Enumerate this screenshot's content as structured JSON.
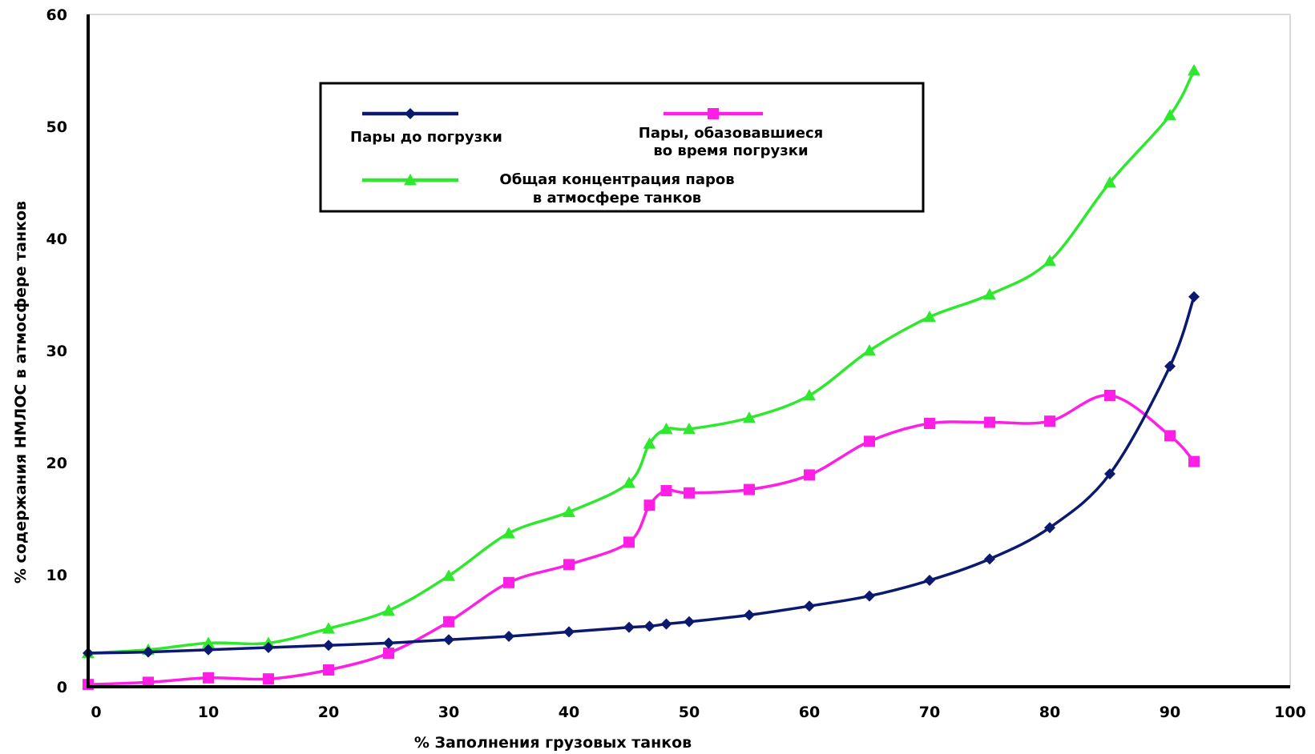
{
  "chart_data": {
    "type": "line",
    "xlabel": "% Заполнения грузовых танков",
    "ylabel": "% содержания НМЛОС  в атмосфере танков",
    "xlim": [
      0,
      100
    ],
    "ylim": [
      0,
      60
    ],
    "x_ticks": [
      "0",
      "10",
      "20",
      "30",
      "40",
      "50",
      "60",
      "70",
      "80",
      "90",
      "100"
    ],
    "y_ticks": [
      "0",
      "10",
      "20",
      "30",
      "40",
      "50",
      "60"
    ],
    "grid": false,
    "legend_position": "top-center",
    "series": [
      {
        "name": "Пары  до погрузки",
        "legend_lines": [
          "Пары  до погрузки"
        ],
        "color": "#0b1a6e",
        "marker": "diamond",
        "points": [
          [
            0,
            3.0
          ],
          [
            5,
            3.1
          ],
          [
            10,
            3.3
          ],
          [
            15,
            3.5
          ],
          [
            20,
            3.7
          ],
          [
            25,
            3.9
          ],
          [
            30,
            4.2
          ],
          [
            35,
            4.5
          ],
          [
            40,
            4.9
          ],
          [
            45,
            5.3
          ],
          [
            46.7,
            5.4
          ],
          [
            48.1,
            5.6
          ],
          [
            50,
            5.8
          ],
          [
            55,
            6.4
          ],
          [
            60,
            7.2
          ],
          [
            65,
            8.1
          ],
          [
            70,
            9.5
          ],
          [
            75,
            11.4
          ],
          [
            80,
            14.2
          ],
          [
            85,
            19.0
          ],
          [
            90,
            28.6
          ],
          [
            92,
            34.8
          ]
        ]
      },
      {
        "name": "Пары, обазовавшиеся во время погрузки",
        "legend_lines": [
          "Пары, обазовавшиеся",
          "во время погрузки"
        ],
        "color": "#ff1ee6",
        "marker": "square",
        "points": [
          [
            0,
            0.2
          ],
          [
            5,
            0.4
          ],
          [
            10,
            0.8
          ],
          [
            15,
            0.7
          ],
          [
            20,
            1.5
          ],
          [
            25,
            3.0
          ],
          [
            30,
            5.8
          ],
          [
            35,
            9.3
          ],
          [
            40,
            10.9
          ],
          [
            45,
            12.9
          ],
          [
            46.7,
            16.2
          ],
          [
            48.1,
            17.5
          ],
          [
            50,
            17.3
          ],
          [
            55,
            17.6
          ],
          [
            60,
            18.9
          ],
          [
            65,
            21.9
          ],
          [
            70,
            23.5
          ],
          [
            75,
            23.6
          ],
          [
            80,
            23.7
          ],
          [
            85,
            26.0
          ],
          [
            90,
            22.4
          ],
          [
            92,
            20.1
          ]
        ]
      },
      {
        "name": "Общая концентрация паров в атмосфере танков",
        "legend_lines": [
          "Общая концентрация паров",
          "в атмосфере танков"
        ],
        "color": "#2ee82e",
        "marker": "triangle",
        "points": [
          [
            0,
            3.0
          ],
          [
            5,
            3.3
          ],
          [
            10,
            3.9
          ],
          [
            15,
            3.9
          ],
          [
            20,
            5.2
          ],
          [
            25,
            6.8
          ],
          [
            30,
            9.9
          ],
          [
            35,
            13.7
          ],
          [
            40,
            15.6
          ],
          [
            45,
            18.2
          ],
          [
            46.7,
            21.7
          ],
          [
            48.1,
            23.0
          ],
          [
            50,
            23.0
          ],
          [
            55,
            24.0
          ],
          [
            60,
            26.0
          ],
          [
            65,
            30.0
          ],
          [
            70,
            33.0
          ],
          [
            75,
            35.0
          ],
          [
            80,
            38.0
          ],
          [
            85,
            45.0
          ],
          [
            90,
            51.0
          ],
          [
            92,
            55.0
          ]
        ]
      }
    ]
  }
}
